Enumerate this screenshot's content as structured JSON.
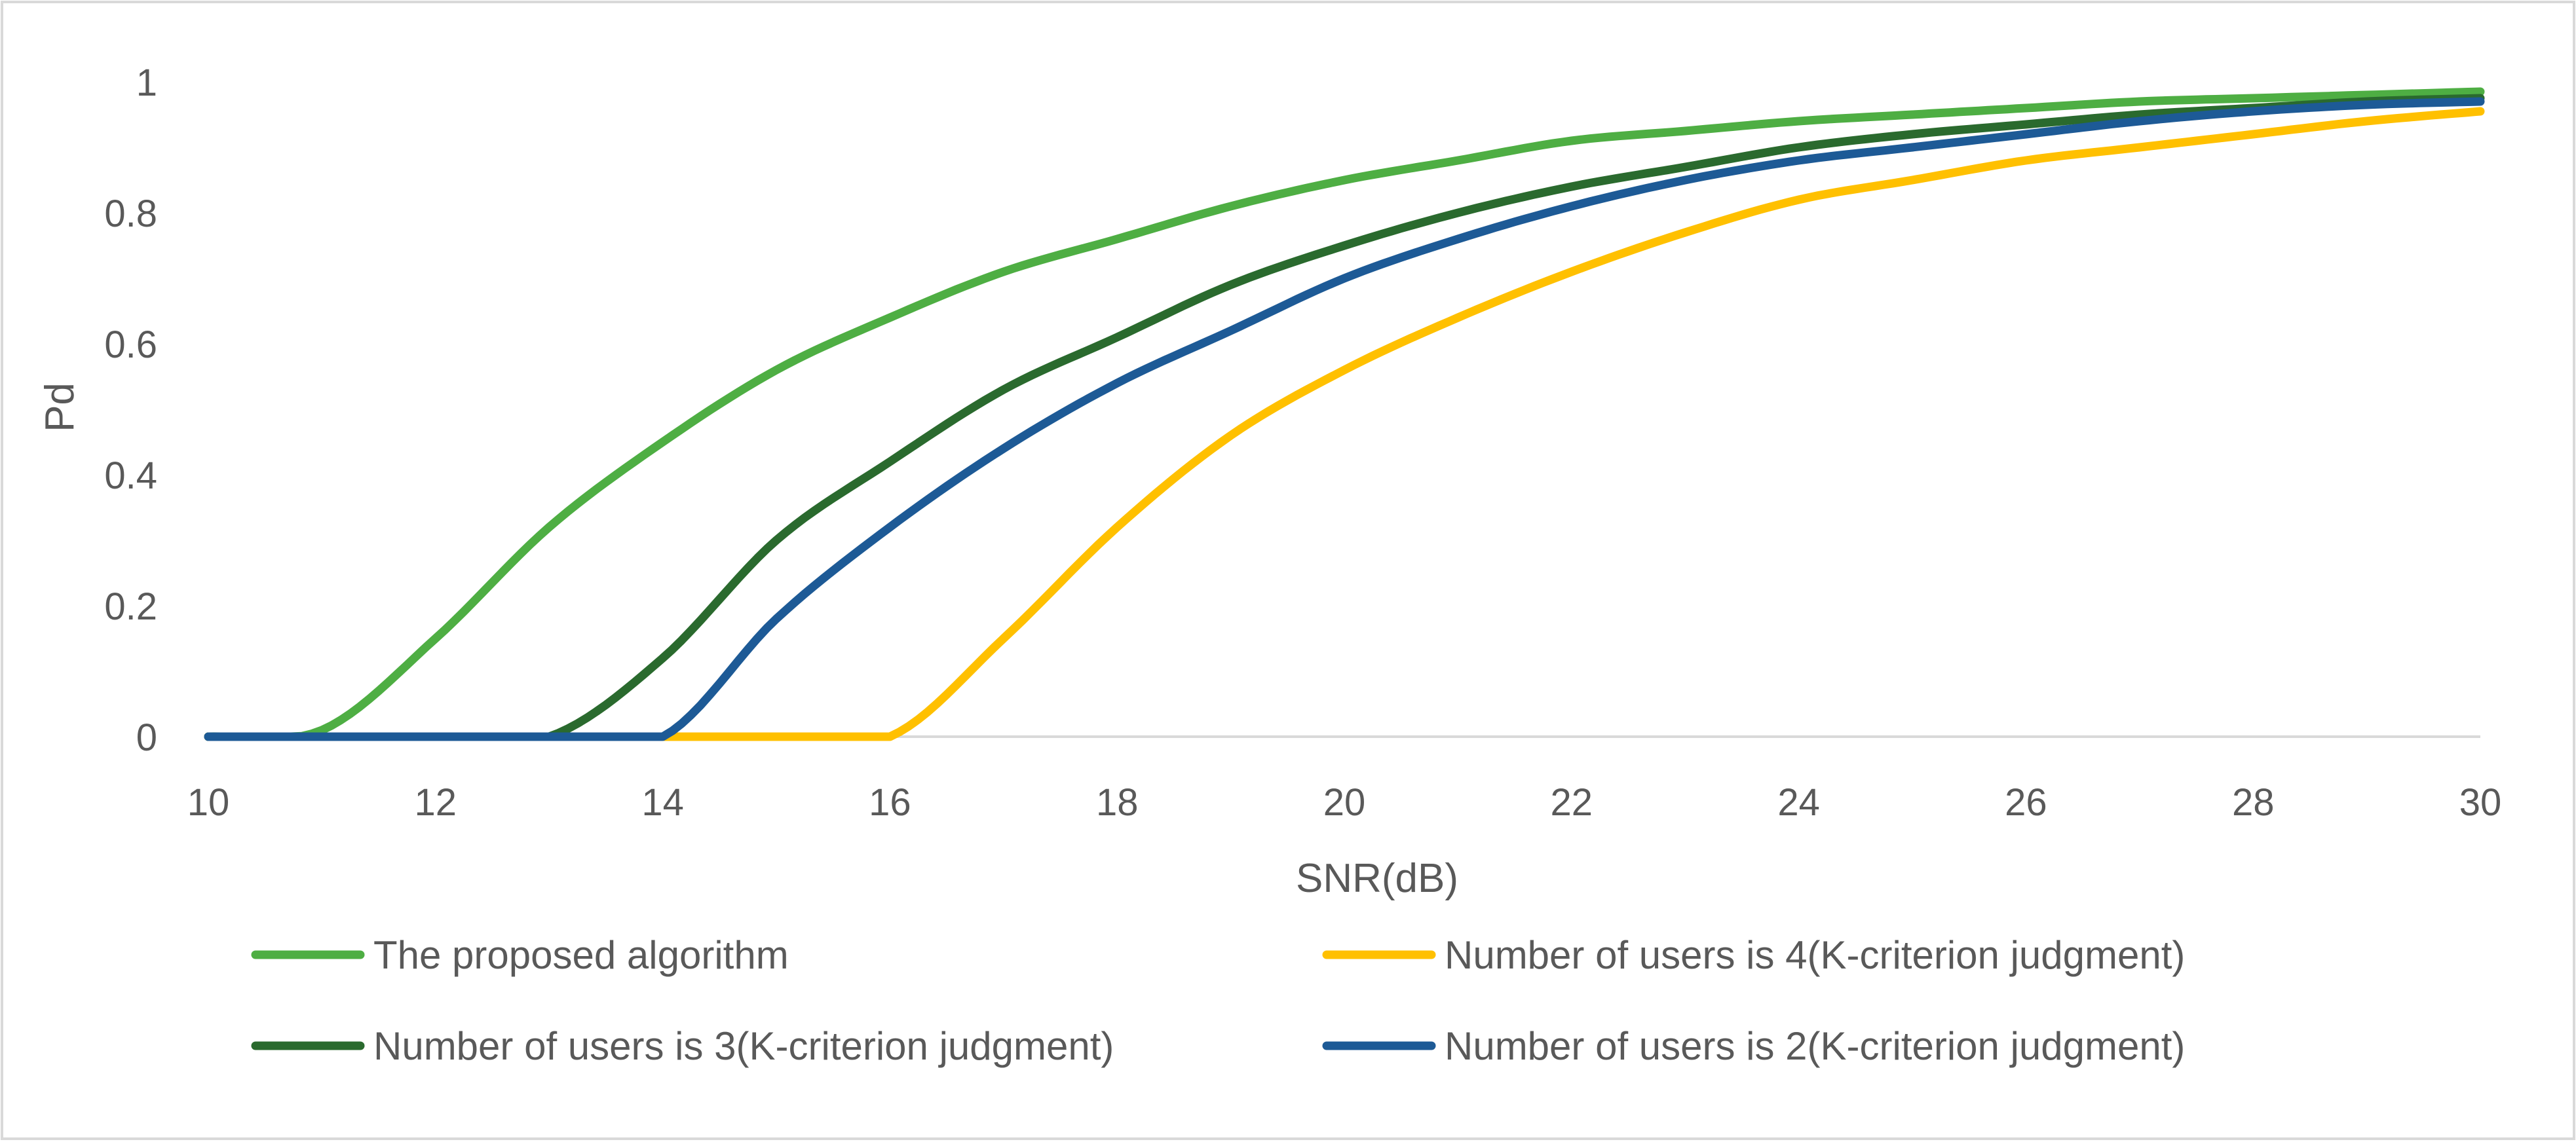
{
  "chart_data": {
    "type": "line",
    "title": "",
    "xlabel": "SNR(dB)",
    "ylabel": "Pd",
    "xlim": [
      10,
      30
    ],
    "ylim": [
      0,
      1
    ],
    "x_ticks": [
      10,
      12,
      14,
      16,
      18,
      20,
      22,
      24,
      26,
      28,
      30
    ],
    "y_ticks": [
      0,
      0.2,
      0.4,
      0.6,
      0.8,
      1
    ],
    "x_tick_labels": [
      "10",
      "12",
      "14",
      "16",
      "18",
      "20",
      "22",
      "24",
      "26",
      "28",
      "30"
    ],
    "y_tick_labels": [
      "0",
      "0.2",
      "0.4",
      "0.6",
      "0.8",
      "1"
    ],
    "grid": false,
    "legend_position": "bottom",
    "x": [
      10,
      11,
      12,
      13,
      14,
      15,
      16,
      17,
      18,
      19,
      20,
      21,
      22,
      23,
      24,
      25,
      26,
      27,
      28,
      29,
      30
    ],
    "series": [
      {
        "name": "The proposed algorithm",
        "color": "#4EAE43",
        "values": [
          0,
          0.01,
          0.15,
          0.32,
          0.45,
          0.56,
          0.64,
          0.71,
          0.76,
          0.81,
          0.85,
          0.88,
          0.91,
          0.925,
          0.94,
          0.95,
          0.96,
          0.97,
          0.975,
          0.98,
          0.985
        ]
      },
      {
        "name": "Number of users is 4(K-criterion judgment)",
        "color": "#FFC000",
        "values": [
          0,
          0,
          0,
          0,
          0,
          0,
          0,
          0.15,
          0.32,
          0.46,
          0.56,
          0.64,
          0.71,
          0.77,
          0.82,
          0.85,
          0.88,
          0.9,
          0.92,
          0.94,
          0.955
        ]
      },
      {
        "name": "Number of users is 3(K-criterion judgment)",
        "color": "#2A6A2E",
        "values": [
          0,
          0,
          0,
          0,
          0.12,
          0.3,
          0.42,
          0.53,
          0.61,
          0.69,
          0.75,
          0.8,
          0.84,
          0.87,
          0.9,
          0.92,
          0.935,
          0.95,
          0.96,
          0.97,
          0.975
        ]
      },
      {
        "name": "Number of users is 2(K-criterion judgment)",
        "color": "#1D5A96",
        "values": [
          0,
          0,
          0,
          0,
          0,
          0.18,
          0.32,
          0.44,
          0.54,
          0.62,
          0.7,
          0.76,
          0.81,
          0.85,
          0.88,
          0.9,
          0.92,
          0.94,
          0.955,
          0.965,
          0.97
        ]
      }
    ]
  }
}
